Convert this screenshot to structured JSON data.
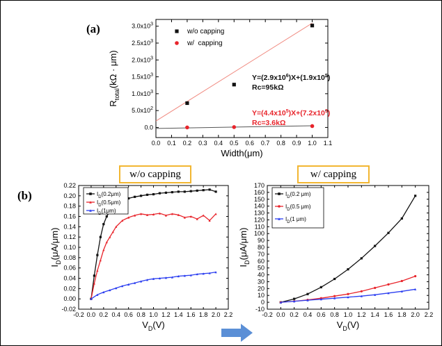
{
  "panel_a_letter": "(a)",
  "panel_b_letter": "(b)",
  "box_titles": {
    "left": "w/o capping",
    "right": "w/ capping"
  },
  "colors": {
    "black": "#111111",
    "red": "#e8242b",
    "blue": "#2b3ef0",
    "fit_red": "#f08a80",
    "fit_gray": "#555555",
    "box": "#f2b631",
    "arrow": "#5b8fd6"
  },
  "chart_data": [
    {
      "id": "a",
      "type": "scatter",
      "xlabel": "Width(μm)",
      "ylabel_main": "R",
      "ylabel_sub": "total",
      "ylabel_rest": "(kΩ · μm)",
      "xlim": [
        0.0,
        1.1
      ],
      "ylim": [
        -0.3,
        3.2
      ],
      "x_ticks": [
        0.0,
        0.1,
        0.2,
        0.3,
        0.4,
        0.5,
        0.6,
        0.7,
        0.8,
        0.9,
        1.0,
        1.1
      ],
      "x_tick_labels": [
        "0.0",
        "0.1",
        "0.2",
        "0.3",
        "0.4",
        "0.5",
        "0.6",
        "0.7",
        "0.8",
        "0.9",
        "1.0",
        "1.1"
      ],
      "y_ticks": [
        0.0,
        0.5,
        1.0,
        1.5,
        2.0,
        2.5,
        3.0
      ],
      "y_tick_labels": [
        {
          "m": "0.0",
          "e": ""
        },
        {
          "m": "5.0x10",
          "e": "2"
        },
        {
          "m": "1.0x10",
          "e": "3"
        },
        {
          "m": "1.5x10",
          "e": "3"
        },
        {
          "m": "2.0x10",
          "e": "3"
        },
        {
          "m": "2.5x10",
          "e": "3"
        },
        {
          "m": "3.0x10",
          "e": "3"
        }
      ],
      "series": [
        {
          "name": "w/o capping",
          "marker": "square",
          "color": "#111111",
          "x": [
            0.2,
            0.5,
            1.0
          ],
          "y": [
            0.72,
            1.27,
            3.02
          ]
        },
        {
          "name": "w/  capping",
          "marker": "circle",
          "color": "#e8242b",
          "x": [
            0.2,
            0.5,
            1.0
          ],
          "y": [
            0.0,
            0.01,
            0.04
          ]
        }
      ],
      "fits": [
        {
          "color": "#f08a80",
          "x": [
            0.0,
            1.0
          ],
          "y": [
            0.19,
            3.09
          ]
        },
        {
          "color": "#555555",
          "x": [
            0.0,
            1.0
          ],
          "y": [
            -0.03,
            0.05
          ]
        }
      ],
      "annotations": [
        {
          "lines": [
            "Y=(2.9x10",
            "6",
            ")X+(1.9x10",
            "5",
            ")"
          ],
          "sub": "Rc=95kΩ",
          "color": "#111111"
        },
        {
          "lines": [
            "Y=(4.4x10",
            "5",
            ")X+(7.2x10",
            "3",
            ")"
          ],
          "sub": "Rc=3.6kΩ",
          "color": "#e8242b"
        }
      ]
    },
    {
      "id": "b_left",
      "type": "line",
      "xlabel_main": "V",
      "xlabel_sub": "D",
      "xlabel_rest": "(V)",
      "ylabel_main": "I",
      "ylabel_sub": "D",
      "ylabel_rest": "(μA/μm)",
      "xlim": [
        -0.2,
        2.2
      ],
      "ylim": [
        -0.02,
        0.22
      ],
      "x_ticks": [
        -0.2,
        0.0,
        0.2,
        0.4,
        0.6,
        0.8,
        1.0,
        1.2,
        1.4,
        1.6,
        1.8,
        2.0,
        2.2
      ],
      "x_tick_labels": [
        "-0.2",
        "0.0",
        "0.2",
        "0.4",
        "0.6",
        "0.8",
        "1.0",
        "1.2",
        "1.4",
        "1.6",
        "1.8",
        "2.0",
        "2.2"
      ],
      "y_ticks": [
        -0.02,
        0.0,
        0.02,
        0.04,
        0.06,
        0.08,
        0.1,
        0.12,
        0.14,
        0.16,
        0.18,
        0.2,
        0.22
      ],
      "y_tick_labels": [
        "-0.02",
        "0.00",
        "0.02",
        "0.04",
        "0.06",
        "0.08",
        "0.10",
        "0.12",
        "0.14",
        "0.16",
        "0.18",
        "0.20",
        "0.22"
      ],
      "series": [
        {
          "name_main": "I",
          "name_sub": "D",
          "name_rest": "(0.2μm)",
          "color": "#111111",
          "marker": "square",
          "x": [
            0.0,
            0.05,
            0.1,
            0.15,
            0.2,
            0.25,
            0.3,
            0.35,
            0.4,
            0.5,
            0.6,
            0.7,
            0.8,
            0.9,
            1.0,
            1.1,
            1.2,
            1.3,
            1.4,
            1.5,
            1.6,
            1.7,
            1.8,
            1.9,
            2.0
          ],
          "y": [
            0.0,
            0.045,
            0.085,
            0.12,
            0.145,
            0.16,
            0.17,
            0.175,
            0.18,
            0.188,
            0.195,
            0.198,
            0.2,
            0.202,
            0.203,
            0.205,
            0.206,
            0.207,
            0.208,
            0.208,
            0.209,
            0.21,
            0.211,
            0.212,
            0.208
          ]
        },
        {
          "name_main": "I",
          "name_sub": "D",
          "name_rest": "(0.5μm)",
          "color": "#e8242b",
          "marker": "triangle",
          "x": [
            0.0,
            0.05,
            0.1,
            0.15,
            0.2,
            0.25,
            0.3,
            0.35,
            0.4,
            0.5,
            0.6,
            0.7,
            0.8,
            0.9,
            1.0,
            1.1,
            1.2,
            1.3,
            1.4,
            1.5,
            1.6,
            1.7,
            1.8,
            1.9,
            2.0
          ],
          "y": [
            0.0,
            0.03,
            0.055,
            0.075,
            0.095,
            0.11,
            0.12,
            0.13,
            0.14,
            0.152,
            0.158,
            0.162,
            0.165,
            0.163,
            0.164,
            0.166,
            0.162,
            0.165,
            0.163,
            0.158,
            0.16,
            0.155,
            0.162,
            0.152,
            0.165
          ]
        },
        {
          "name_main": "I",
          "name_sub": "D",
          "name_rest": "(1μm)",
          "color": "#2b3ef0",
          "marker": "triangle",
          "x": [
            0.0,
            0.1,
            0.2,
            0.3,
            0.4,
            0.5,
            0.6,
            0.7,
            0.8,
            0.9,
            1.0,
            1.1,
            1.2,
            1.3,
            1.4,
            1.5,
            1.6,
            1.7,
            1.8,
            1.9,
            2.0
          ],
          "y": [
            0.0,
            0.008,
            0.013,
            0.017,
            0.021,
            0.025,
            0.028,
            0.031,
            0.034,
            0.037,
            0.039,
            0.04,
            0.041,
            0.042,
            0.044,
            0.045,
            0.046,
            0.048,
            0.049,
            0.05,
            0.052
          ]
        }
      ]
    },
    {
      "id": "b_right",
      "type": "line",
      "xlabel_main": "V",
      "xlabel_sub": "D",
      "xlabel_rest": "(V)",
      "ylabel_main": "I",
      "ylabel_sub": "D",
      "ylabel_rest": "(μA/μm)",
      "xlim": [
        -0.2,
        2.2
      ],
      "ylim": [
        -10,
        170
      ],
      "x_ticks": [
        -0.2,
        0.0,
        0.2,
        0.4,
        0.6,
        0.8,
        1.0,
        1.2,
        1.4,
        1.6,
        1.8,
        2.0,
        2.2
      ],
      "x_tick_labels": [
        "-0.2",
        "0.0",
        "0.2",
        "0.4",
        "0.6",
        "0.8",
        "1.0",
        "1.2",
        "1.4",
        "1.6",
        "1.8",
        "2.0",
        "2.2"
      ],
      "y_ticks": [
        -10,
        0,
        10,
        20,
        30,
        40,
        50,
        60,
        70,
        80,
        90,
        100,
        110,
        120,
        130,
        140,
        150,
        160,
        170
      ],
      "y_tick_labels": [
        "-10",
        "0",
        "10",
        "20",
        "30",
        "40",
        "50",
        "60",
        "70",
        "80",
        "90",
        "100",
        "110",
        "120",
        "130",
        "140",
        "150",
        "160",
        "170"
      ],
      "series": [
        {
          "name_main": "I",
          "name_sub": "D",
          "name_rest": "(0.2 μm)",
          "color": "#111111",
          "marker": "square",
          "x": [
            0.0,
            0.2,
            0.4,
            0.6,
            0.8,
            1.0,
            1.2,
            1.4,
            1.6,
            1.8,
            2.0
          ],
          "y": [
            0,
            5,
            12,
            22,
            34,
            48,
            64,
            82,
            101,
            122,
            155
          ]
        },
        {
          "name_main": "I",
          "name_sub": "D",
          "name_rest": "(0.5 μm)",
          "color": "#e8242b",
          "marker": "circle",
          "x": [
            0.0,
            0.2,
            0.4,
            0.6,
            0.8,
            1.0,
            1.2,
            1.4,
            1.6,
            1.8,
            2.0
          ],
          "y": [
            0,
            1.5,
            3.5,
            6,
            9,
            12,
            16,
            21,
            26,
            31,
            38
          ]
        },
        {
          "name_main": "I",
          "name_sub": "D",
          "name_rest": "(1 μm)",
          "color": "#2b3ef0",
          "marker": "triangle",
          "x": [
            0.0,
            0.2,
            0.4,
            0.6,
            0.8,
            1.0,
            1.2,
            1.4,
            1.6,
            1.8,
            2.0
          ],
          "y": [
            0,
            1.5,
            3,
            4.5,
            6,
            7.5,
            9,
            11,
            13.5,
            16,
            19
          ]
        }
      ]
    }
  ]
}
